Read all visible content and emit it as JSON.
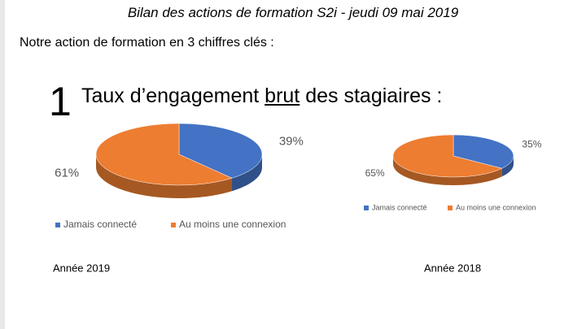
{
  "header": {
    "title": "Bilan des actions de formation S2i - jeudi 09 mai 2019",
    "intro": "Notre action de formation en 3 chiffres clés :"
  },
  "section": {
    "number": "1",
    "title_before": "Taux d’engagement",
    "title_underlined": "brut",
    "title_after": "des stagiaires :"
  },
  "chart_data": [
    {
      "type": "pie",
      "categories": [
        "Jamais connecté",
        "Au moins une connexion"
      ],
      "values": [
        39,
        61
      ],
      "value_labels": [
        "39%",
        "61%"
      ],
      "colors": [
        "#4472c4",
        "#ed7d31"
      ],
      "caption": "Année 2019"
    },
    {
      "type": "pie",
      "categories": [
        "Jamais connecté",
        "Au moins une connexion"
      ],
      "values": [
        35,
        65
      ],
      "value_labels": [
        "35%",
        "65%"
      ],
      "colors": [
        "#4472c4",
        "#ed7d31"
      ],
      "caption": "Année 2018"
    }
  ]
}
